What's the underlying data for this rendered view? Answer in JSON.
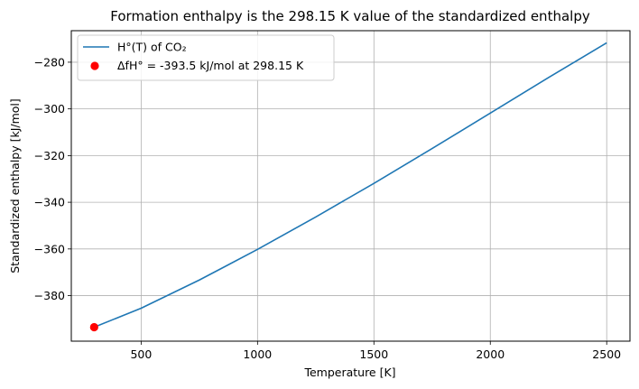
{
  "chart_data": {
    "type": "line",
    "title": "Formation enthalpy is the 298.15 K value of the standardized enthalpy",
    "xlabel": "Temperature [K]",
    "ylabel": "Standardized enthalpy [kJ/mol]",
    "xlim": [
      200,
      2600
    ],
    "ylim": [
      -399.5,
      -266.5
    ],
    "grid": true,
    "legend_location": "upper-left",
    "xticks": [
      500,
      1000,
      1500,
      2000,
      2500
    ],
    "xtick_labels": [
      "500",
      "1000",
      "1500",
      "2000",
      "2500"
    ],
    "yticks": [
      -380,
      -360,
      -340,
      -320,
      -300,
      -280
    ],
    "ytick_labels": [
      "−380",
      "−360",
      "−340",
      "−320",
      "−300",
      "−280"
    ],
    "series": [
      {
        "name": "H°(T) of CO₂",
        "kind": "line",
        "color": "#1f77b4",
        "x": [
          298.15,
          500,
          750,
          1000,
          1250,
          1500,
          1750,
          2000,
          2250,
          2500
        ],
        "y": [
          -393.5,
          -385.4,
          -373.3,
          -360.2,
          -346.3,
          -331.9,
          -317.0,
          -301.8,
          -286.6,
          -271.7
        ]
      },
      {
        "name": "ΔfH° = -393.5 kJ/mol at 298.15 K",
        "kind": "scatter",
        "color": "#ff0000",
        "x": [
          298.15
        ],
        "y": [
          -393.5
        ]
      }
    ]
  }
}
